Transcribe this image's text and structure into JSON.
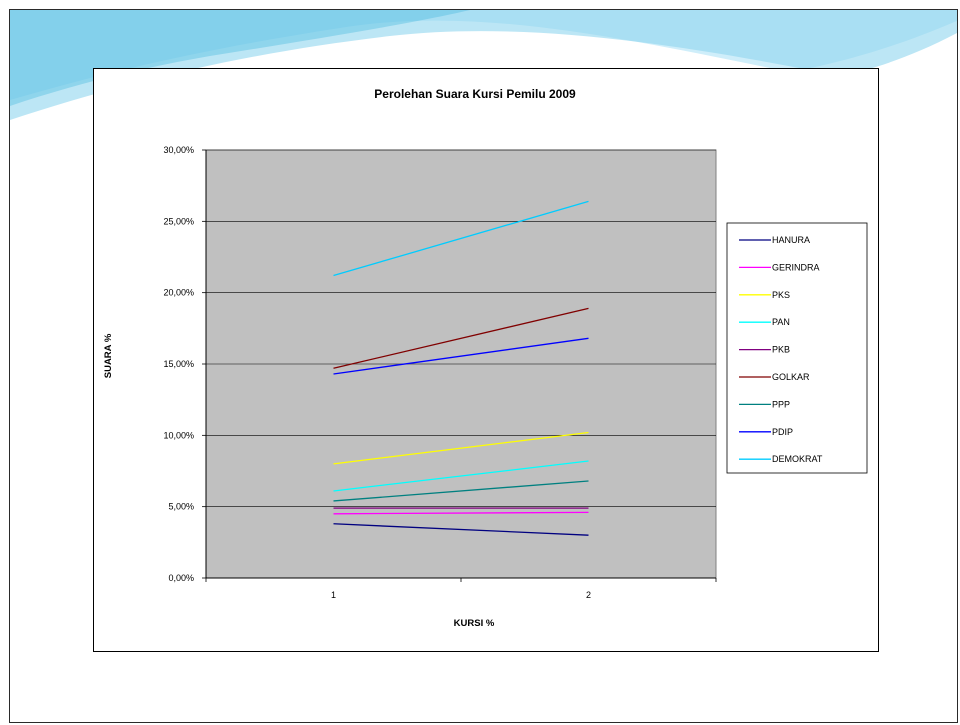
{
  "colors": {
    "plot_bg": "#c0c0c0",
    "wave_light": "#cfeefa",
    "wave_mid": "#8fd6ee",
    "wave_dark": "#3cb4dc"
  },
  "chart_data": {
    "type": "line",
    "title": "Perolehan Suara Kursi Pemilu 2009",
    "xlabel": "KURSI %",
    "ylabel": "SUARA %",
    "categories": [
      "1",
      "2"
    ],
    "ylim": [
      0,
      30
    ],
    "yticks": [
      0,
      5,
      10,
      15,
      20,
      25,
      30
    ],
    "ytick_labels": [
      "0,00%",
      "5,00%",
      "10,00%",
      "15,00%",
      "20,00%",
      "25,00%",
      "30,00%"
    ],
    "grid": true,
    "legend_position": "right",
    "series": [
      {
        "name": "HANURA",
        "color": "#000080",
        "values": [
          3.8,
          3.0
        ]
      },
      {
        "name": "GERINDRA",
        "color": "#ff00ff",
        "values": [
          4.5,
          4.6
        ]
      },
      {
        "name": "PKS",
        "color": "#ffff00",
        "values": [
          8.0,
          10.2
        ]
      },
      {
        "name": "PAN",
        "color": "#00ffff",
        "values": [
          6.1,
          8.2
        ]
      },
      {
        "name": "PKB",
        "color": "#800080",
        "values": [
          4.9,
          4.9
        ]
      },
      {
        "name": "GOLKAR",
        "color": "#800000",
        "values": [
          14.7,
          18.9
        ]
      },
      {
        "name": "PPP",
        "color": "#008080",
        "values": [
          5.4,
          6.8
        ]
      },
      {
        "name": "PDIP",
        "color": "#0000ff",
        "values": [
          14.3,
          16.8
        ]
      },
      {
        "name": "DEMOKRAT",
        "color": "#00ccff",
        "values": [
          21.2,
          26.4
        ]
      }
    ]
  }
}
